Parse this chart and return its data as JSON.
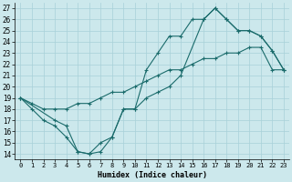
{
  "xlabel": "Humidex (Indice chaleur)",
  "bg_color": "#cce8ec",
  "grid_color": "#a8d0d8",
  "line_color": "#1a6b6b",
  "xlim": [
    -0.5,
    23.5
  ],
  "ylim": [
    13.5,
    27.5
  ],
  "xticks": [
    0,
    1,
    2,
    3,
    4,
    5,
    6,
    7,
    8,
    9,
    10,
    11,
    12,
    13,
    14,
    15,
    16,
    17,
    18,
    19,
    20,
    21,
    22,
    23
  ],
  "yticks": [
    14,
    15,
    16,
    17,
    18,
    19,
    20,
    21,
    22,
    23,
    24,
    25,
    26,
    27
  ],
  "line1_x": [
    0,
    1,
    2,
    3,
    4,
    5,
    6,
    7,
    8,
    9,
    10,
    11,
    12,
    13,
    14,
    15,
    16,
    17,
    18,
    19,
    20,
    21,
    22,
    23
  ],
  "line1_y": [
    19,
    18,
    17,
    16.5,
    15.5,
    14.2,
    14,
    15,
    15.5,
    18,
    18,
    21.5,
    23,
    24.5,
    24.5,
    26,
    26,
    27,
    26,
    25,
    25,
    24.5,
    23.2,
    21.5
  ],
  "line2_x": [
    0,
    1,
    2,
    3,
    4,
    5,
    6,
    7,
    8,
    9,
    10,
    11,
    12,
    13,
    14,
    15,
    16,
    17,
    18,
    19,
    20,
    21,
    22,
    23
  ],
  "line2_y": [
    19,
    18.5,
    18,
    18,
    18,
    18.5,
    18.5,
    19,
    19.5,
    19.5,
    20,
    20.5,
    21,
    21.5,
    21.5,
    22,
    22.5,
    22.5,
    23,
    23,
    23.5,
    23.5,
    21.5,
    21.5
  ],
  "line3_x": [
    0,
    3,
    4,
    5,
    6,
    7,
    8,
    9,
    10,
    11,
    12,
    13,
    14,
    16,
    17,
    18,
    19,
    20,
    21,
    22,
    23
  ],
  "line3_y": [
    19,
    17,
    16.5,
    14.2,
    14,
    14.2,
    15.5,
    18,
    18,
    19,
    19.5,
    20,
    21,
    26,
    27,
    26,
    25,
    25,
    24.5,
    23.2,
    21.5
  ]
}
